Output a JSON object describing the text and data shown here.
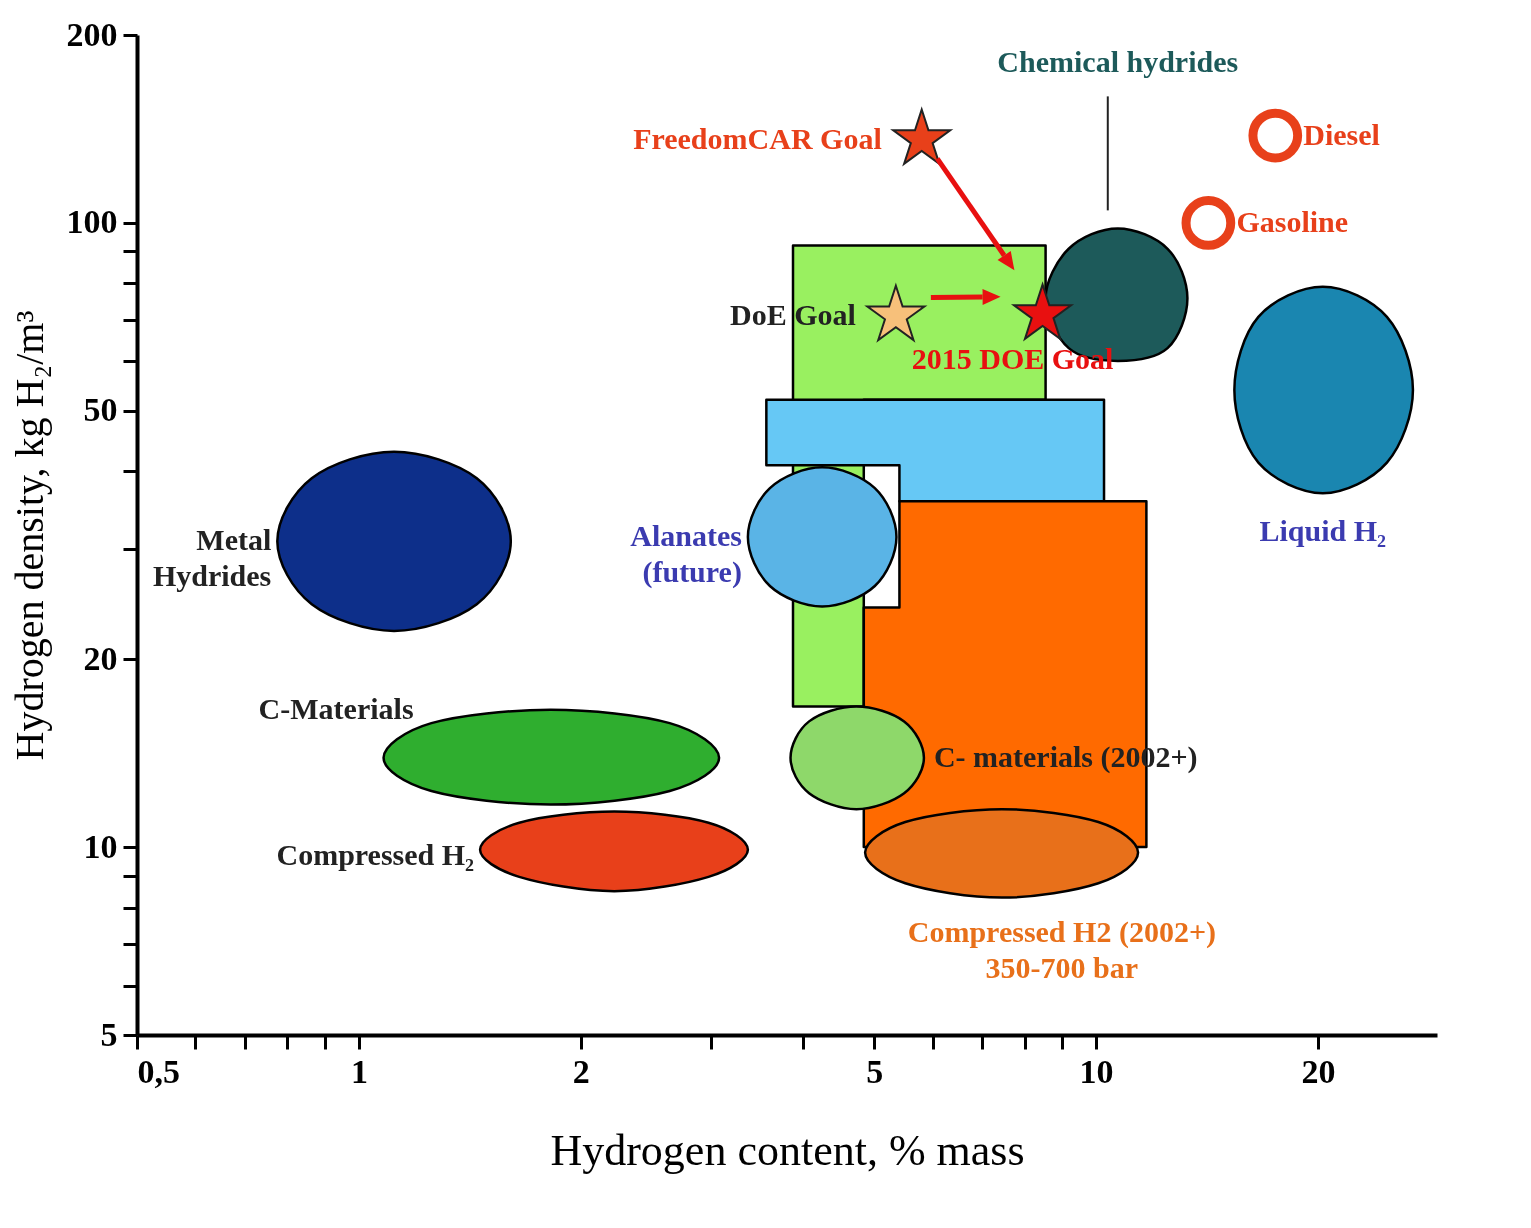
{
  "chart_data": {
    "type": "scatter",
    "xlabel": "Hydrogen content, % mass",
    "ylabel": "Hydrogen density, kg H₂/m³",
    "log": "xy",
    "grid": false,
    "xlim": [
      0.5,
      29
    ],
    "ylim": [
      5,
      200
    ],
    "xticks": [
      {
        "value": 0.5,
        "label": "0,5"
      },
      {
        "value": 0.6,
        "label": null
      },
      {
        "value": 0.7,
        "label": null
      },
      {
        "value": 0.8,
        "label": null
      },
      {
        "value": 0.9,
        "label": null
      },
      1,
      2,
      {
        "value": 3,
        "label": null
      },
      {
        "value": 4,
        "label": null
      },
      5,
      {
        "value": 6,
        "label": null
      },
      {
        "value": 7,
        "label": null
      },
      {
        "value": 8,
        "label": null
      },
      {
        "value": 9,
        "label": null
      },
      10,
      20
    ],
    "yticks": [
      5,
      {
        "value": 6,
        "label": null
      },
      {
        "value": 7,
        "label": null
      },
      {
        "value": 8,
        "label": null
      },
      {
        "value": 9,
        "label": null
      },
      10,
      20,
      {
        "value": 30,
        "label": null
      },
      {
        "value": 40,
        "label": null
      },
      50,
      {
        "value": 60,
        "label": null
      },
      {
        "value": 70,
        "label": null
      },
      {
        "value": 80,
        "label": null
      },
      {
        "value": 90,
        "label": null
      },
      100,
      200
    ],
    "series": [
      {
        "type": "area",
        "color": "#99f060",
        "x": [
          3.88,
          8.54,
          8.54,
          4.84,
          4.84,
          3.88
        ],
        "values": [
          92,
          92,
          52.1,
          52.1,
          16.8,
          16.8
        ]
      },
      {
        "type": "area",
        "color": "#66c8f5",
        "x": [
          3.57,
          10.25,
          10.25,
          5.41,
          5.41,
          3.57
        ],
        "values": [
          52.1,
          52.1,
          35.8,
          35.8,
          40.9,
          40.9
        ]
      },
      {
        "type": "area",
        "color": "#ff6a00",
        "x": [
          5.41,
          11.7,
          11.7,
          4.84,
          4.84,
          5.41
        ],
        "values": [
          35.8,
          35.8,
          10,
          10,
          24.2,
          24.2
        ]
      },
      {
        "type": "area",
        "name": "Metal\nHydrides",
        "color": "#0d2f8a",
        "x": [
          0.775,
          0.863,
          1.116,
          1.445,
          1.607,
          1.445,
          1.116,
          0.863
        ],
        "values": [
          30.9,
          39,
          43,
          39,
          30.9,
          24.5,
          22.2,
          24.5
        ]
      },
      {
        "type": "area",
        "name": "C-Materials",
        "color": "#2fae2f",
        "x": [
          1.08,
          1.254,
          1.82,
          2.64,
          3.08,
          2.64,
          1.82,
          1.254
        ],
        "values": [
          13.9,
          15.8,
          16.6,
          15.8,
          13.9,
          12.3,
          11.7,
          12.3
        ]
      },
      {
        "type": "area",
        "name": "Compressed H₂",
        "color": "#e8401a",
        "x": [
          1.46,
          1.65,
          2.22,
          2.98,
          3.37,
          2.98,
          2.22,
          1.65
        ],
        "values": [
          9.9,
          10.94,
          11.4,
          10.94,
          9.9,
          8.96,
          8.5,
          8.96
        ]
      },
      {
        "type": "area",
        "name": "Alanates\n(future)",
        "color": "#5ab4e6",
        "x": [
          3.37,
          3.61,
          4.25,
          5.01,
          5.36,
          5.01,
          4.25,
          3.61
        ],
        "values": [
          31.4,
          37.6,
          40.6,
          37.6,
          31.4,
          26.2,
          24.3,
          26.2
        ]
      },
      {
        "type": "area",
        "name": "C- materials (2002+)",
        "color": "#8ed86a",
        "x": [
          3.85,
          4.08,
          4.73,
          5.49,
          5.84,
          5.49,
          4.73,
          4.08
        ],
        "values": [
          13.9,
          15.9,
          16.8,
          15.9,
          13.9,
          12.2,
          11.5,
          12.2
        ]
      },
      {
        "type": "area",
        "name": "Compressed H2 (2002+)\n350-700 bar",
        "color": "#e8701a",
        "x": [
          4.86,
          5.51,
          7.45,
          10.07,
          11.4,
          10.07,
          7.45,
          5.51
        ],
        "values": [
          9.8,
          10.97,
          11.5,
          10.97,
          9.8,
          8.75,
          8.3,
          8.75
        ]
      },
      {
        "type": "area",
        "name": "Chemical hydrides",
        "color": "#1d5a5a",
        "x": [
          8.54,
          9.18,
          10.7,
          12.5,
          13.3,
          12.5,
          10.7,
          9.18
        ],
        "values": [
          75.7,
          90.9,
          98,
          90.9,
          75.7,
          63,
          60.1,
          63
        ]
      },
      {
        "type": "area",
        "name": "Liquid H₂",
        "color": "#1a86b0",
        "x": [
          15.4,
          16.6,
          20.3,
          24.8,
          26.9,
          24.8,
          20.3,
          16.6
        ],
        "values": [
          54,
          70.7,
          79,
          70.7,
          54,
          41.3,
          36.9,
          41.3
        ]
      },
      {
        "name": "Diesel",
        "marker": "circle",
        "color": "#e8401a",
        "x": [
          17.5
        ],
        "values": [
          138
        ]
      },
      {
        "name": "Gasoline",
        "marker": "circle",
        "color": "#e8401a",
        "x": [
          14.2
        ],
        "values": [
          100
        ]
      },
      {
        "name": "FreedomCAR Goal",
        "marker": "star",
        "color": "#e8401a",
        "x": [
          5.8
        ],
        "values": [
          136
        ]
      },
      {
        "name": "DoE Goal",
        "marker": "star",
        "color": "#f7c07a",
        "x": [
          5.35
        ],
        "values": [
          71
        ]
      },
      {
        "name": "2015 DOE Goal",
        "marker": "star",
        "color": "#e81010",
        "x": [
          8.46
        ],
        "values": [
          71.3
        ]
      }
    ]
  }
}
